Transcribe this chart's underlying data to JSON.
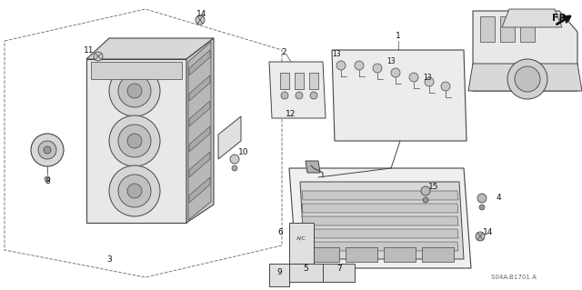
{
  "background_color": "#ffffff",
  "line_color": "#444444",
  "dark_color": "#222222",
  "figsize": [
    6.4,
    3.19
  ],
  "dpi": 100,
  "diagram_id": "S04A-B1701 A",
  "label_fs": 6.5,
  "small_fs": 5.5
}
